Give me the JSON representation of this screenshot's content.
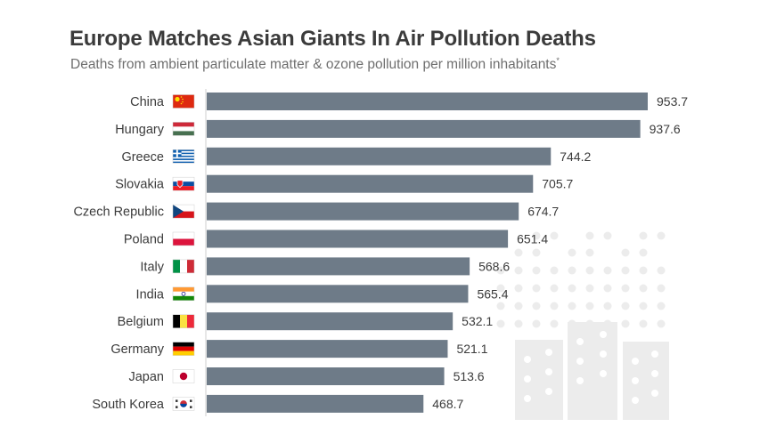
{
  "title": "Europe Matches Asian Giants In Air Pollution Deaths",
  "subtitle": "Deaths from ambient particulate matter & ozone pollution per million inhabitants",
  "subtitle_footnote_mark": "*",
  "colors": {
    "bar": "#6e7b88",
    "label": "#3b3b3b",
    "title": "#3b3b3b",
    "subtitle": "#6f6f6f",
    "axis": "#cfcfcf",
    "decor": "#ececec"
  },
  "chart_data": {
    "type": "bar",
    "orientation": "horizontal",
    "title": "Europe Matches Asian Giants In Air Pollution Deaths",
    "subtitle": "Deaths from ambient particulate matter & ozone pollution per million inhabitants",
    "categories": [
      "China",
      "Hungary",
      "Greece",
      "Slovakia",
      "Czech Republic",
      "Poland",
      "Italy",
      "India",
      "Belgium",
      "Germany",
      "Japan",
      "South Korea"
    ],
    "values": [
      953.7,
      937.6,
      744.2,
      705.7,
      674.7,
      651.4,
      568.6,
      565.4,
      532.1,
      521.1,
      513.6,
      468.7
    ],
    "value_labels": [
      "953.7",
      "937.6",
      "744.2",
      "705.7",
      "674.7",
      "651.4",
      "568.6",
      "565.4",
      "532.1",
      "521.1",
      "513.6",
      "468.7"
    ],
    "flag_icons": [
      "china-flag-icon",
      "hungary-flag-icon",
      "greece-flag-icon",
      "slovakia-flag-icon",
      "czech-republic-flag-icon",
      "poland-flag-icon",
      "italy-flag-icon",
      "india-flag-icon",
      "belgium-flag-icon",
      "germany-flag-icon",
      "japan-flag-icon",
      "south-korea-flag-icon"
    ],
    "xlim": [
      0,
      953.7
    ],
    "grid": false,
    "legend": "none"
  }
}
